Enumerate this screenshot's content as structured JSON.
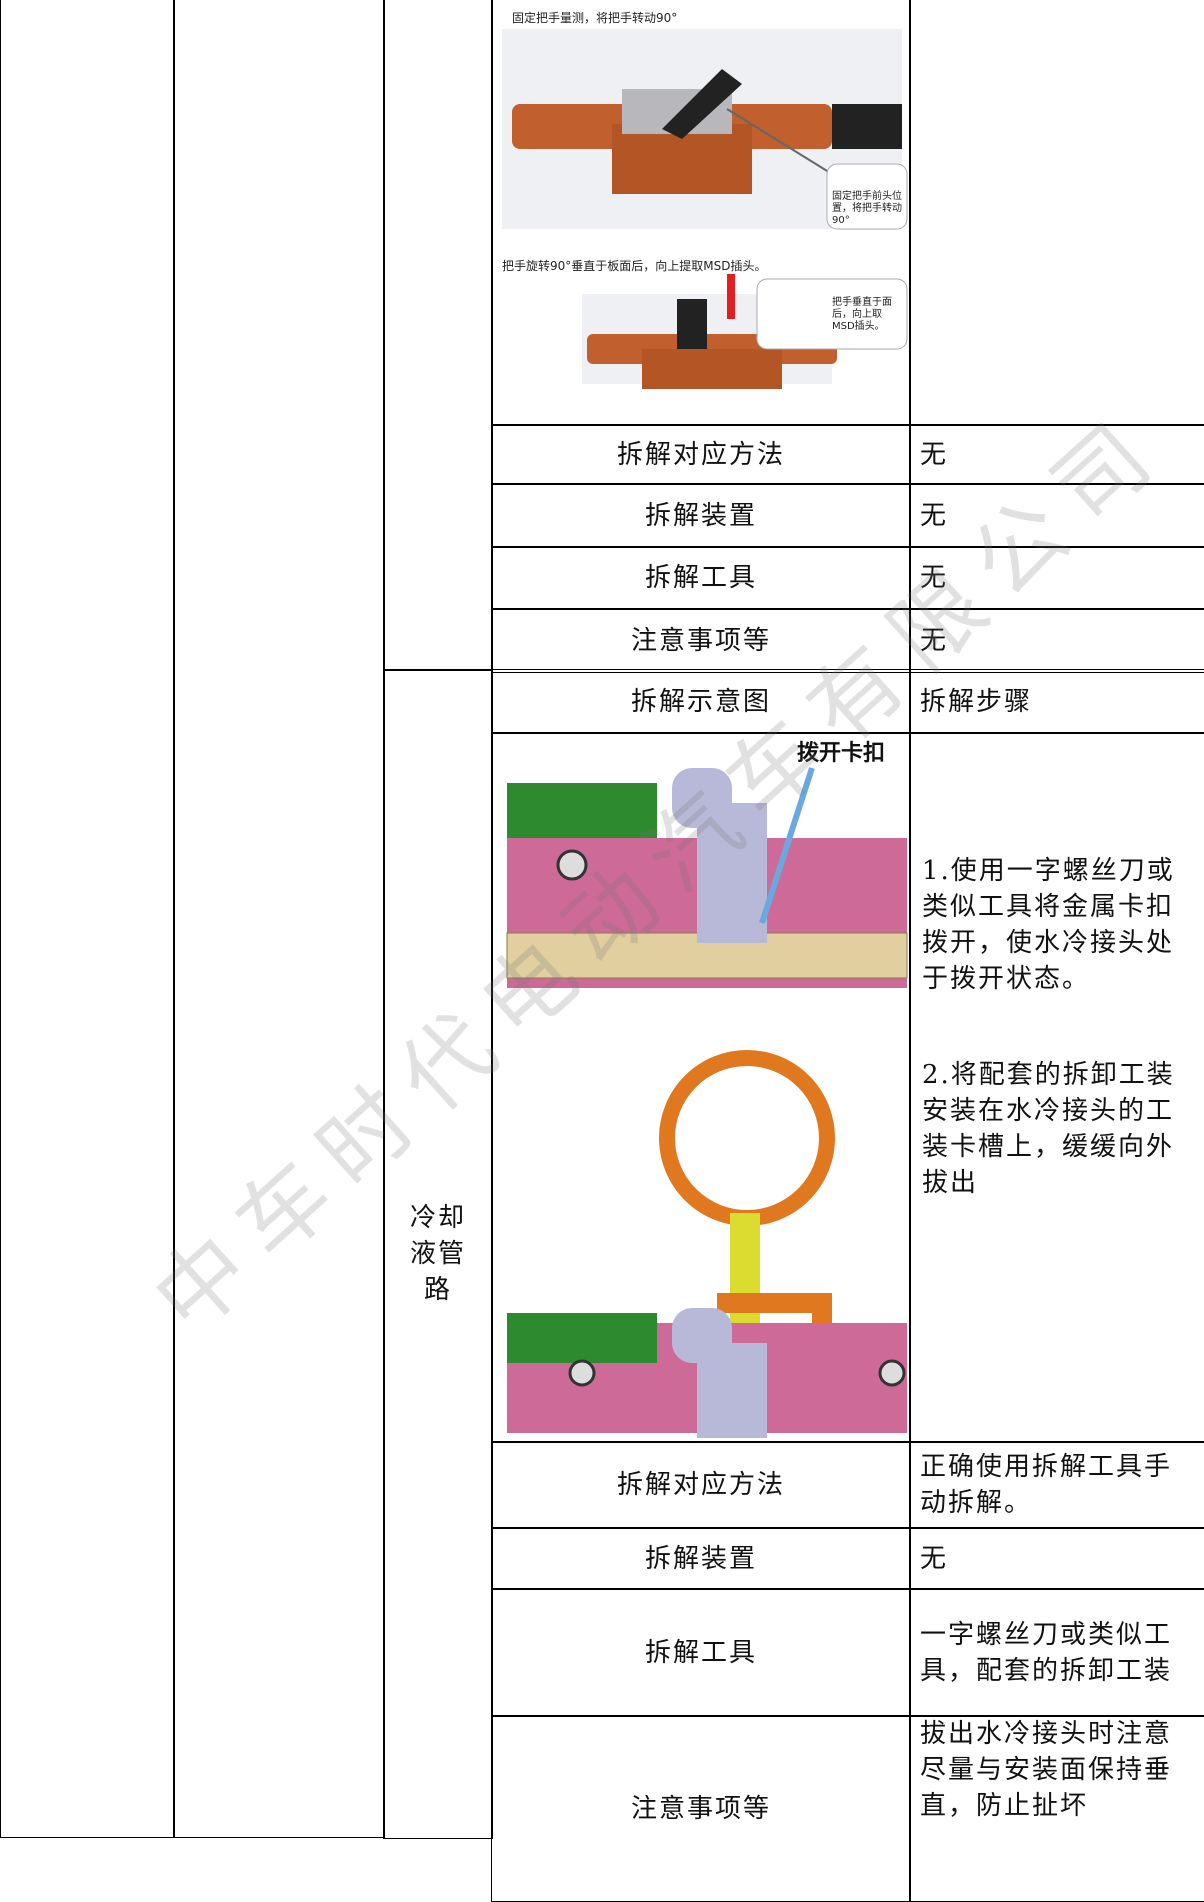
{
  "table": {
    "section_1": {
      "image": {
        "caption_1": "固定把手量测，将把手转动90°",
        "callout_1": "固定把手前头位置，将把手转动90°",
        "caption_2": "把手旋转90°垂直于板面后，向上提取MSD插头。",
        "callout_2": "把手垂直于面后，向上取MSD插头。"
      },
      "rows": [
        [
          "拆解对应方法",
          "无"
        ],
        [
          "拆解装置",
          "无"
        ],
        [
          "拆解工具",
          "无"
        ],
        [
          "注意事项等",
          "无"
        ]
      ]
    },
    "section_2": {
      "label": "冷却液管路",
      "header": [
        "拆解示意图",
        "拆解步骤"
      ],
      "image_label": "拨开卡扣",
      "steps": [
        "1.使用一字螺丝刀或类似工具将金属卡扣拨开，使水冷接头处于拨开状态。",
        "2.将配套的拆卸工装安装在水冷接头的工装卡槽上，缓缓向外拔出"
      ],
      "rows": [
        [
          "拆解对应方法",
          "正确使用拆解工具手动拆解。"
        ],
        [
          "拆解装置",
          "无"
        ],
        [
          "拆解工具",
          "一字螺丝刀或类似工具，配套的拆卸工装"
        ],
        [
          "注意事项等",
          "拔出水冷接头时注意尽量与安装面保持垂直，防止扯坏"
        ]
      ]
    }
  },
  "watermark": "中车时代电动汽车有限公司"
}
